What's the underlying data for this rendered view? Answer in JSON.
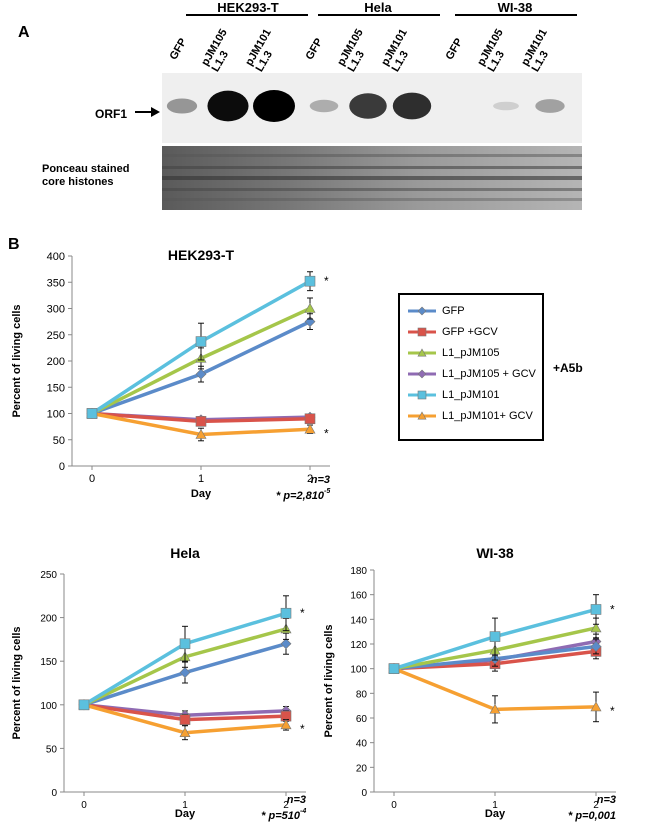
{
  "panel_a": {
    "letter": "A",
    "cell_lines": [
      "HEK293-T",
      "Hela",
      "WI-38"
    ],
    "lanes": [
      "GFP",
      "pJM105\nL1.3",
      "pJM101\nL1.3",
      "GFP",
      "pJM105\nL1.3",
      "pJM101\nL1.3",
      "GFP",
      "pJM105\nL1.3",
      "pJM101\nL1.3"
    ],
    "orf1_label": "ORF1",
    "ponceau_label": "Ponceau stained\ncore histones",
    "band_intensity": [
      0.35,
      0.95,
      1.0,
      0.25,
      0.75,
      0.8,
      0.0,
      0.1,
      0.3
    ]
  },
  "panel_b": {
    "letter": "B",
    "legend_side_label": "+A5b"
  },
  "legend": [
    {
      "name": "GFP",
      "color": "#5b8bc9",
      "marker": "diamond"
    },
    {
      "name": "GFP +GCV",
      "color": "#d9534a",
      "marker": "square"
    },
    {
      "name": "L1_pJM105",
      "color": "#a5c64a",
      "marker": "triangle"
    },
    {
      "name": "L1_pJM105 + GCV",
      "color": "#8f6bb3",
      "marker": "diamond"
    },
    {
      "name": "L1_pJM101",
      "color": "#5bc0de",
      "marker": "square"
    },
    {
      "name": "L1_pJM101+ GCV",
      "color": "#f6a032",
      "marker": "triangle"
    }
  ],
  "chart_data": [
    {
      "type": "line",
      "title": "HEK293-T",
      "xlabel": "Day",
      "ylabel": "Percent of living cells",
      "x": [
        0,
        1,
        2
      ],
      "ylim": [
        0,
        400
      ],
      "yticks": [
        0,
        50,
        100,
        150,
        200,
        250,
        300,
        350,
        400
      ],
      "series": [
        {
          "name": "GFP",
          "values": [
            100,
            175,
            275
          ],
          "err": [
            5,
            15,
            15
          ]
        },
        {
          "name": "GFP +GCV",
          "values": [
            100,
            85,
            90
          ],
          "err": [
            5,
            8,
            8
          ]
        },
        {
          "name": "L1_pJM105",
          "values": [
            100,
            205,
            300
          ],
          "err": [
            5,
            20,
            20
          ]
        },
        {
          "name": "L1_pJM105 + GCV",
          "values": [
            100,
            88,
            93
          ],
          "err": [
            5,
            6,
            6
          ]
        },
        {
          "name": "L1_pJM101",
          "values": [
            100,
            237,
            352
          ],
          "err": [
            5,
            35,
            18
          ]
        },
        {
          "name": "L1_pJM101+ GCV",
          "values": [
            100,
            60,
            70
          ],
          "err": [
            5,
            12,
            8
          ]
        }
      ],
      "n_label": "n=3",
      "p_label": "* p=2,810",
      "p_exp": "-5",
      "stars": [
        "*",
        "*"
      ]
    },
    {
      "type": "line",
      "title": "Hela",
      "xlabel": "Day",
      "ylabel": "Percent of living cells",
      "x": [
        0,
        1,
        2
      ],
      "ylim": [
        0,
        250
      ],
      "yticks": [
        0,
        50,
        100,
        150,
        200,
        250
      ],
      "series": [
        {
          "name": "GFP",
          "values": [
            100,
            137,
            170
          ],
          "err": [
            5,
            12,
            12
          ]
        },
        {
          "name": "GFP +GCV",
          "values": [
            100,
            83,
            87
          ],
          "err": [
            5,
            6,
            6
          ]
        },
        {
          "name": "L1_pJM105",
          "values": [
            100,
            155,
            187
          ],
          "err": [
            5,
            12,
            12
          ]
        },
        {
          "name": "L1_pJM105 + GCV",
          "values": [
            100,
            88,
            93
          ],
          "err": [
            5,
            5,
            5
          ]
        },
        {
          "name": "L1_pJM101",
          "values": [
            100,
            170,
            205
          ],
          "err": [
            5,
            20,
            20
          ]
        },
        {
          "name": "L1_pJM101+ GCV",
          "values": [
            100,
            68,
            77
          ],
          "err": [
            5,
            8,
            6
          ]
        }
      ],
      "n_label": "n=3",
      "p_label": "* p=510",
      "p_exp": "-4",
      "stars": [
        "*",
        "*"
      ]
    },
    {
      "type": "line",
      "title": "WI-38",
      "xlabel": "Day",
      "ylabel": "Percent of living cells",
      "x": [
        0,
        1,
        2
      ],
      "ylim": [
        0,
        180
      ],
      "yticks": [
        0,
        20,
        40,
        60,
        80,
        100,
        120,
        140,
        160,
        180
      ],
      "series": [
        {
          "name": "GFP",
          "values": [
            100,
            108,
            118
          ],
          "err": [
            4,
            6,
            6
          ]
        },
        {
          "name": "GFP +GCV",
          "values": [
            100,
            104,
            114
          ],
          "err": [
            4,
            6,
            6
          ]
        },
        {
          "name": "L1_pJM105",
          "values": [
            100,
            115,
            133
          ],
          "err": [
            4,
            8,
            8
          ]
        },
        {
          "name": "L1_pJM105 + GCV",
          "values": [
            100,
            107,
            122
          ],
          "err": [
            4,
            6,
            6
          ]
        },
        {
          "name": "L1_pJM101",
          "values": [
            100,
            126,
            148
          ],
          "err": [
            4,
            15,
            12
          ]
        },
        {
          "name": "L1_pJM101+ GCV",
          "values": [
            100,
            67,
            69
          ],
          "err": [
            4,
            11,
            12
          ]
        }
      ],
      "n_label": "n=3",
      "p_label": "* p=0,001",
      "p_exp": "",
      "stars": [
        "*",
        "*"
      ]
    }
  ]
}
